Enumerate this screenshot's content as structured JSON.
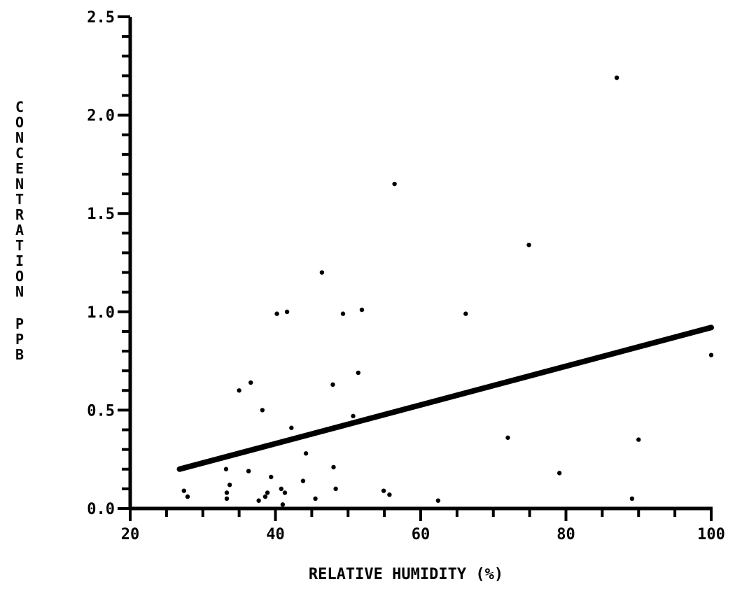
{
  "chart_data": {
    "type": "scatter",
    "title": "",
    "xlabel": "RELATIVE HUMIDITY (%)",
    "ylabel": "CONCENTRATION PPB",
    "xlim": [
      20,
      100
    ],
    "ylim": [
      0,
      2.5
    ],
    "x_ticks": [
      20,
      40,
      60,
      80,
      100
    ],
    "x_tick_labels": [
      "20",
      "40",
      "60",
      "80",
      "100"
    ],
    "y_ticks": [
      0,
      0.5,
      1.0,
      1.5,
      2.0,
      2.5
    ],
    "y_tick_labels": [
      "0.0",
      "0.5",
      "1.0",
      "1.5",
      "2.0",
      "2.5"
    ],
    "grid": false,
    "legend": "none",
    "colors": {
      "ink": "#000000",
      "background": "#ffffff"
    },
    "points": [
      {
        "x": 27.4,
        "y": 0.09
      },
      {
        "x": 27.9,
        "y": 0.06
      },
      {
        "x": 33.2,
        "y": 0.2
      },
      {
        "x": 33.3,
        "y": 0.08
      },
      {
        "x": 33.3,
        "y": 0.05
      },
      {
        "x": 33.7,
        "y": 0.12
      },
      {
        "x": 35.0,
        "y": 0.6
      },
      {
        "x": 36.3,
        "y": 0.19
      },
      {
        "x": 36.6,
        "y": 0.64
      },
      {
        "x": 37.7,
        "y": 0.04
      },
      {
        "x": 38.2,
        "y": 0.5
      },
      {
        "x": 38.6,
        "y": 0.06
      },
      {
        "x": 38.9,
        "y": 0.08
      },
      {
        "x": 39.4,
        "y": 0.16
      },
      {
        "x": 40.2,
        "y": 0.99
      },
      {
        "x": 40.8,
        "y": 0.1
      },
      {
        "x": 41.0,
        "y": 0.02
      },
      {
        "x": 41.3,
        "y": 0.08
      },
      {
        "x": 41.6,
        "y": 1.0
      },
      {
        "x": 42.2,
        "y": 0.41
      },
      {
        "x": 43.8,
        "y": 0.14
      },
      {
        "x": 44.2,
        "y": 0.28
      },
      {
        "x": 45.5,
        "y": 0.05
      },
      {
        "x": 46.4,
        "y": 1.2
      },
      {
        "x": 47.9,
        "y": 0.63
      },
      {
        "x": 48.0,
        "y": 0.21
      },
      {
        "x": 48.3,
        "y": 0.1
      },
      {
        "x": 49.3,
        "y": 0.99
      },
      {
        "x": 50.7,
        "y": 0.47
      },
      {
        "x": 51.4,
        "y": 0.69
      },
      {
        "x": 51.9,
        "y": 1.01
      },
      {
        "x": 54.9,
        "y": 0.09
      },
      {
        "x": 55.7,
        "y": 0.07
      },
      {
        "x": 56.4,
        "y": 1.65
      },
      {
        "x": 62.4,
        "y": 0.04
      },
      {
        "x": 66.2,
        "y": 0.99
      },
      {
        "x": 72.0,
        "y": 0.36
      },
      {
        "x": 74.9,
        "y": 1.34
      },
      {
        "x": 79.1,
        "y": 0.18
      },
      {
        "x": 87.0,
        "y": 2.19
      },
      {
        "x": 89.1,
        "y": 0.05
      },
      {
        "x": 90.0,
        "y": 0.35
      },
      {
        "x": 100.0,
        "y": 0.78
      }
    ],
    "regression_line": {
      "x": [
        26.8,
        100
      ],
      "y": [
        0.2,
        0.92
      ]
    }
  }
}
